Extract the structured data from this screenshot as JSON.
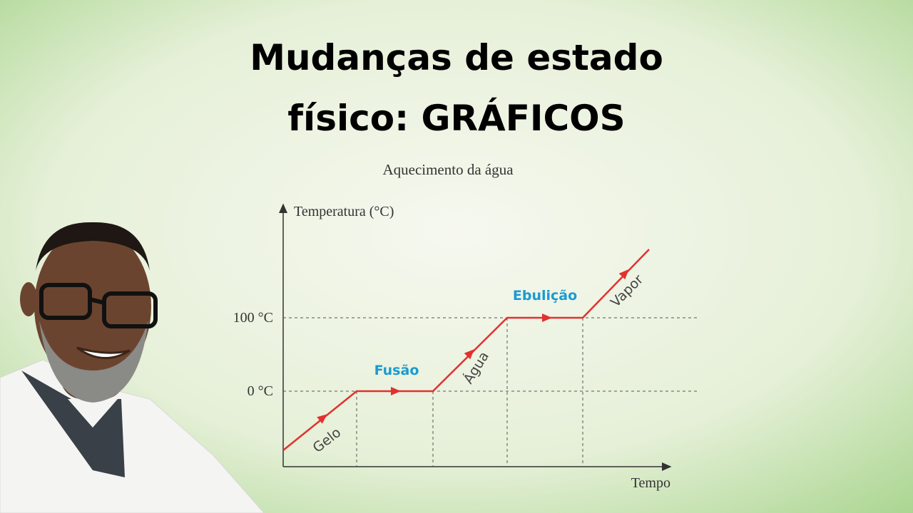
{
  "header": {
    "title_lines": [
      "Mudanças de estado",
      "físico: GRÁFICOS"
    ]
  },
  "diagram": {
    "title": "Aquecimento da água",
    "y_axis_label": "Temperatura (°C)",
    "x_axis_label": "Tempo",
    "levels": [
      "100 °C",
      "0 °C"
    ],
    "phase_labels": [
      "Gelo",
      "Fusão",
      "Água",
      "Ebulição",
      "Vapor"
    ]
  }
}
